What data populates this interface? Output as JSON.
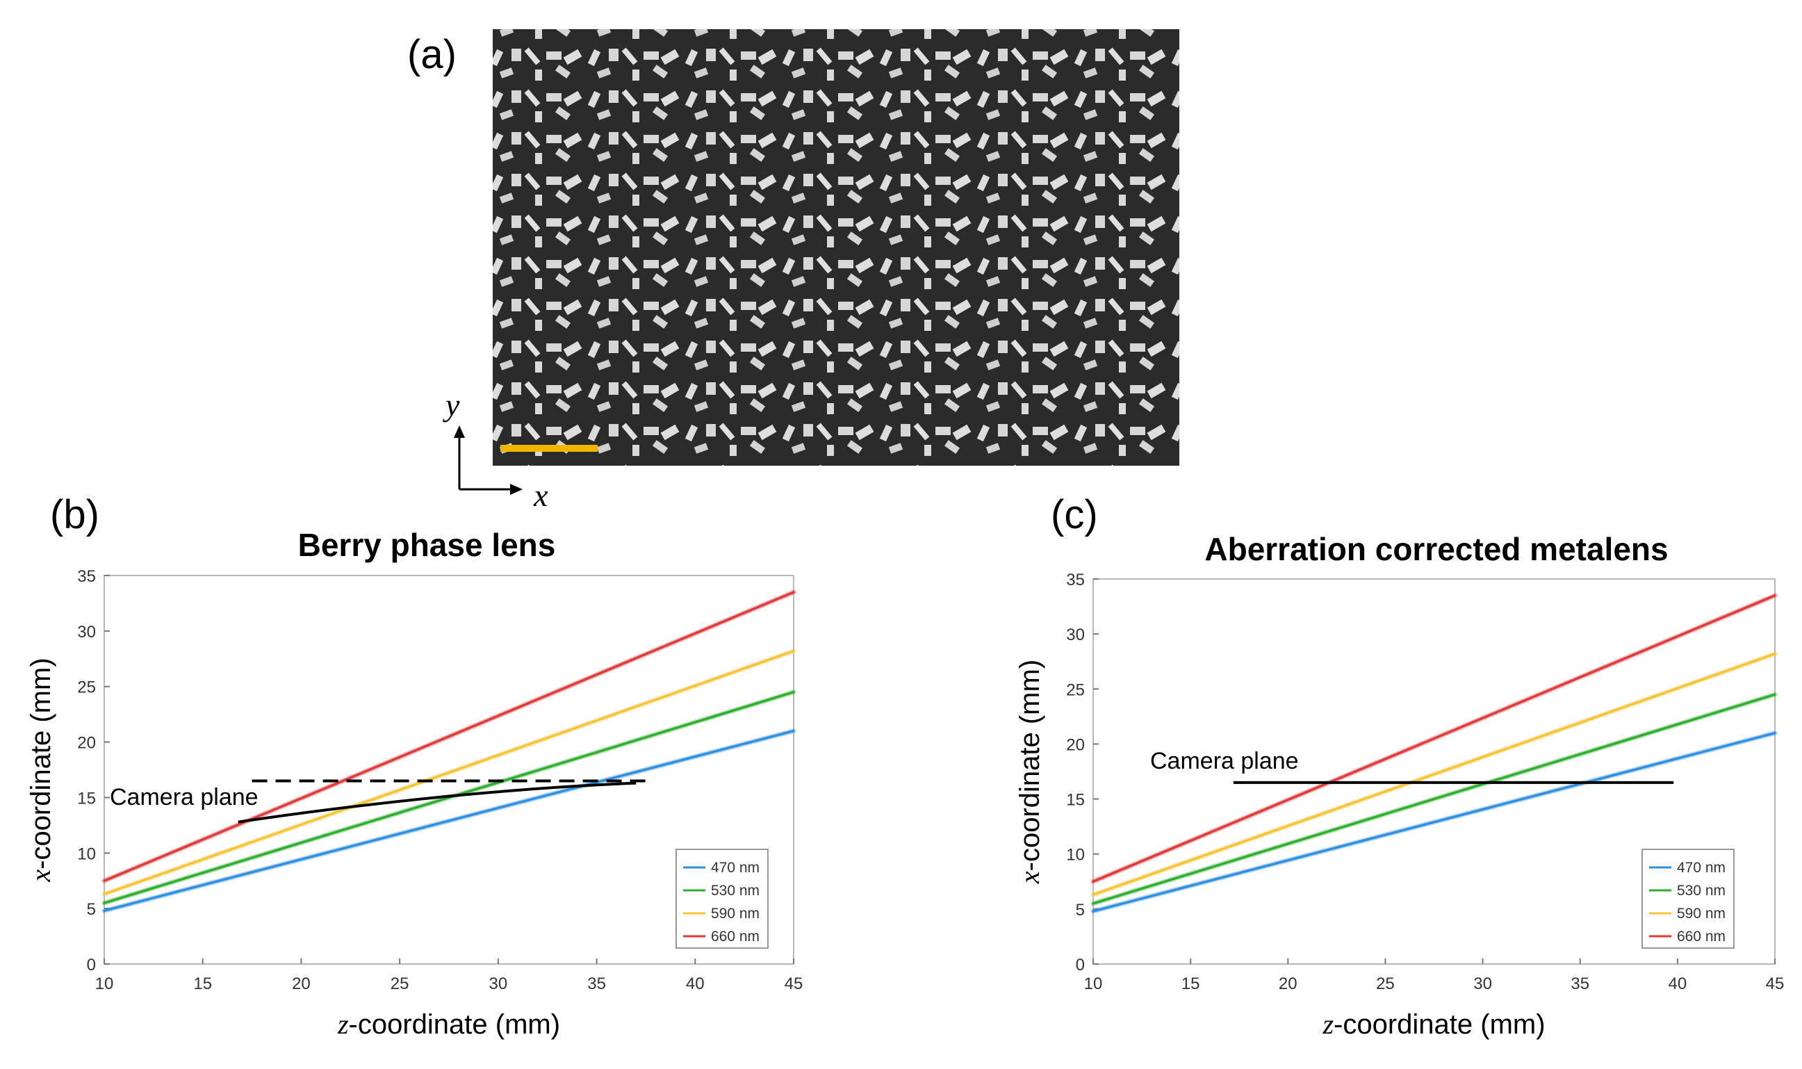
{
  "panels": {
    "a": {
      "label": "(a)",
      "x_axis": "x",
      "y_axis": "y",
      "scale_bar_color": "#f2b600"
    },
    "b": {
      "label": "(b)"
    },
    "c": {
      "label": "(c)"
    }
  },
  "colors": {
    "470 nm": "#2f8fe0",
    "530 nm": "#2fae2f",
    "590 nm": "#f5c437",
    "660 nm": "#e23a3a"
  },
  "chart_data": [
    {
      "type": "line",
      "title": "Berry phase lens",
      "xlabel_var": "z",
      "xlabel_rest": "-coordinate  (mm)",
      "ylabel_var": "x",
      "ylabel_rest": "-coordinate  (mm)",
      "xlim": [
        10,
        45
      ],
      "ylim": [
        0,
        35
      ],
      "xticks": [
        10,
        15,
        20,
        25,
        30,
        35,
        40,
        45
      ],
      "yticks": [
        0,
        5,
        10,
        15,
        20,
        25,
        30,
        35
      ],
      "x": [
        10,
        45
      ],
      "series": [
        {
          "name": "470 nm",
          "values": [
            4.8,
            21.0
          ]
        },
        {
          "name": "530 nm",
          "values": [
            5.5,
            24.5
          ]
        },
        {
          "name": "590 nm",
          "values": [
            6.3,
            28.2
          ]
        },
        {
          "name": "660 nm",
          "values": [
            7.5,
            33.5
          ]
        }
      ],
      "legend": [
        "470 nm",
        "530 nm",
        "590 nm",
        "660 nm"
      ],
      "legend_position": "bottom-right",
      "annotation": "Camera plane",
      "camera_dashed": {
        "x": [
          17.5,
          37.5
        ],
        "y": [
          16.5,
          16.5
        ]
      },
      "camera_solid": {
        "x": [
          16.8,
          23,
          30,
          37
        ],
        "y": [
          12.8,
          14.4,
          15.8,
          16.3
        ]
      }
    },
    {
      "type": "line",
      "title": "Aberration corrected metalens",
      "xlabel_var": "z",
      "xlabel_rest": "-coordinate  (mm)",
      "ylabel_var": "x",
      "ylabel_rest": "-coordinate  (mm)",
      "xlim": [
        10,
        45
      ],
      "ylim": [
        0,
        35
      ],
      "xticks": [
        10,
        15,
        20,
        25,
        30,
        35,
        40,
        45
      ],
      "yticks": [
        0,
        5,
        10,
        15,
        20,
        25,
        30,
        35
      ],
      "x": [
        10,
        45
      ],
      "series": [
        {
          "name": "470 nm",
          "values": [
            4.8,
            21.0
          ]
        },
        {
          "name": "530 nm",
          "values": [
            5.5,
            24.5
          ]
        },
        {
          "name": "590 nm",
          "values": [
            6.3,
            28.2
          ]
        },
        {
          "name": "660 nm",
          "values": [
            7.5,
            33.5
          ]
        }
      ],
      "legend": [
        "470 nm",
        "530 nm",
        "590 nm",
        "660 nm"
      ],
      "legend_position": "bottom-right",
      "annotation": "Camera plane",
      "camera_solid": {
        "x": [
          17.2,
          39.8
        ],
        "y": [
          16.5,
          16.5
        ]
      }
    }
  ]
}
